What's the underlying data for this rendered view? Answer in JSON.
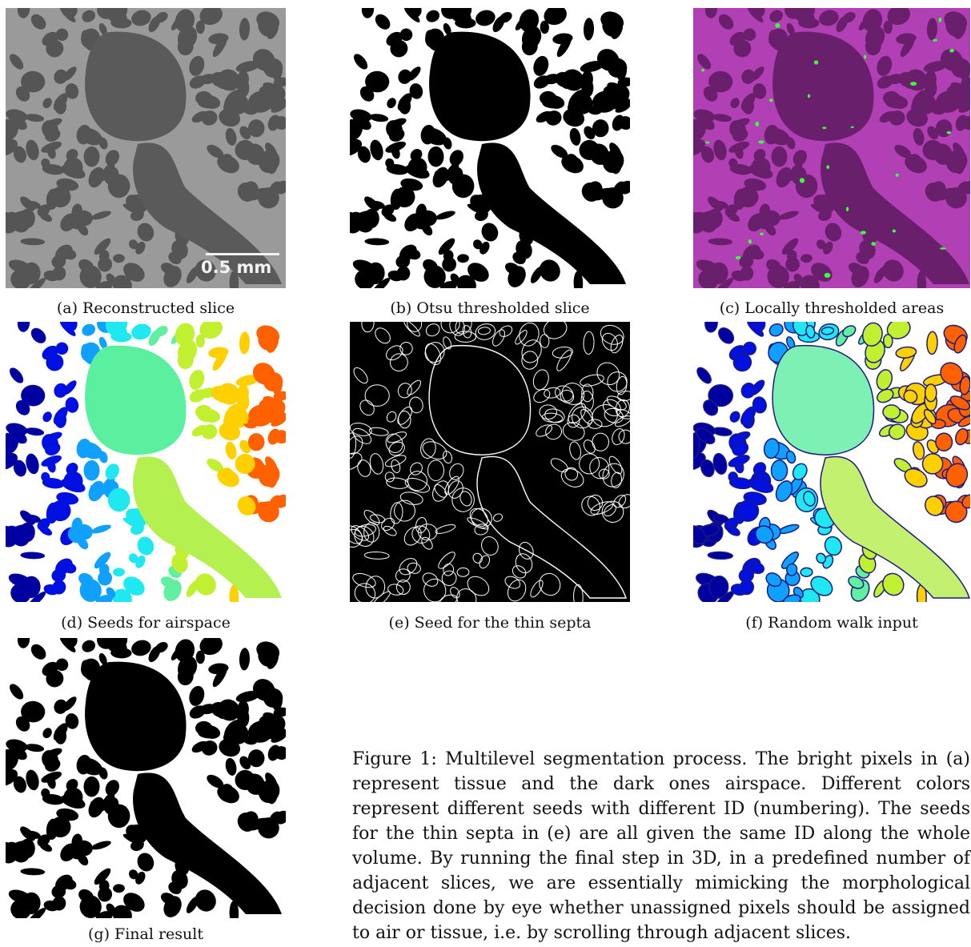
{
  "panels": [
    {
      "id": "a",
      "caption": "(a) Reconstructed slice",
      "style": "grayscale-ct",
      "scalebar": "0.5 mm"
    },
    {
      "id": "b",
      "caption": "(b) Otsu thresholded slice",
      "style": "binary"
    },
    {
      "id": "c",
      "caption": "(c) Locally thresholded areas",
      "style": "magenta-overlay"
    },
    {
      "id": "d",
      "caption": "(d) Seeds for airspace",
      "style": "colored-seeds"
    },
    {
      "id": "e",
      "caption": "(e) Seed for the thin septa",
      "style": "outline-on-black"
    },
    {
      "id": "f",
      "caption": "(f) Random walk input",
      "style": "colored-seeds-outlined"
    },
    {
      "id": "g",
      "caption": "(g) Final result",
      "style": "binary"
    }
  ],
  "figure_caption": "Figure 1: Multilevel segmentation process. The bright pixels in (a) represent tissue and the dark ones airspace. Different colors represent different seeds with different ID (numbering). The seeds for the thin septa in (e) are all given the same ID along the whole volume. By running the final step in 3D, in a predefined number of adjacent slices, we are essentially mimicking the morphological decision done by eye whether unassigned pixels should be assigned to air or tissue, i.e. by scrolling through adjacent slices.",
  "colors": {
    "ct_bg": "#7a7a7a",
    "ct_air": "#565656",
    "ct_tissue": "#b8b8b8",
    "magenta_bg": "#8a208c",
    "magenta_air": "#5a1a5c",
    "magenta_tissue": "#c25ac6",
    "green_spot": "#3cff3c",
    "seed_large_top": "#5af0a0",
    "seed_large_bottom": "#b4f050"
  }
}
